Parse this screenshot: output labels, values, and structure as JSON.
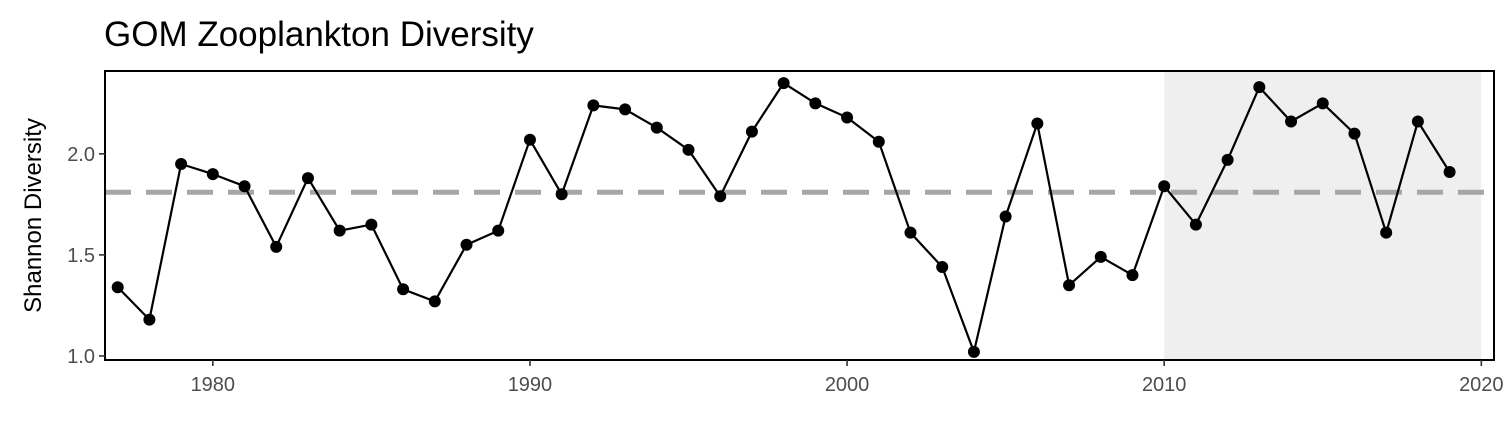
{
  "chart_data": {
    "type": "line",
    "title": "GOM Zooplankton Diversity",
    "xlabel": "",
    "ylabel": "Shannon Diversity",
    "xlim": [
      1976.6,
      2020.4
    ],
    "ylim": [
      0.98,
      2.41
    ],
    "x_ticks": [
      1980,
      1990,
      2000,
      2010,
      2020
    ],
    "y_ticks": [
      "1.0",
      "1.5",
      "2.0"
    ],
    "grid": false,
    "legend": "none",
    "reference_line": {
      "y": 1.81,
      "style": "dashed",
      "color": "#a6a6a6"
    },
    "shaded_region": {
      "x": [
        2010,
        2020
      ],
      "color": "#efefef"
    },
    "series": [
      {
        "color": "#000000",
        "x": [
          1977,
          1978,
          1979,
          1980,
          1981,
          1982,
          1983,
          1984,
          1985,
          1986,
          1987,
          1988,
          1989,
          1990,
          1991,
          1992,
          1993,
          1994,
          1995,
          1996,
          1997,
          1998,
          1999,
          2000,
          2001,
          2002,
          2003,
          2004,
          2005,
          2006,
          2007,
          2008,
          2009,
          2010,
          2011,
          2012,
          2013,
          2014,
          2015,
          2016,
          2017,
          2018,
          2019
        ],
        "y": [
          1.34,
          1.18,
          1.95,
          1.9,
          1.84,
          1.54,
          1.88,
          1.62,
          1.65,
          1.33,
          1.27,
          1.55,
          1.62,
          2.07,
          1.8,
          2.24,
          2.22,
          2.13,
          2.02,
          1.79,
          2.11,
          2.35,
          2.25,
          2.18,
          2.06,
          1.61,
          1.44,
          1.02,
          1.69,
          2.15,
          1.35,
          1.49,
          1.4,
          1.84,
          1.65,
          1.97,
          2.33,
          2.16,
          2.25,
          2.1,
          1.61,
          2.16,
          1.91
        ]
      }
    ]
  }
}
